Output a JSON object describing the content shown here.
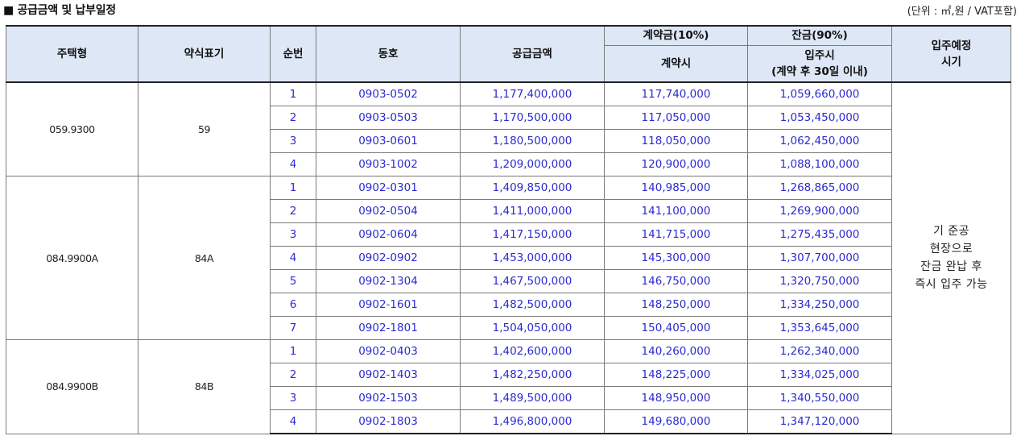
{
  "title": "■ 공급금액 및 납부일정",
  "unit_note": "(단위 : ㎡,원 / VAT포함)",
  "headers": {
    "type": "주택형",
    "abbr": "약식표기",
    "order": "순번",
    "unit_no": "동호",
    "price": "공급금액",
    "deposit": "계약금(10%)",
    "deposit_sub": "계약시",
    "balance": "잔금(90%)",
    "balance_sub1": "입주시",
    "balance_sub2": "(계약 후 30일 이내)",
    "move_in": "입주예정",
    "move_in2": "시기"
  },
  "move_in_note": [
    "기 준공",
    "현장으로",
    "잔금 완납 후",
    "즉시 입주 가능"
  ],
  "groups": [
    {
      "type": "059.9300",
      "abbr": "59",
      "rows": [
        {
          "no": "1",
          "unit": "0903-0502",
          "price": "1,177,400,000",
          "deposit": "117,740,000",
          "balance": "1,059,660,000"
        },
        {
          "no": "2",
          "unit": "0903-0503",
          "price": "1,170,500,000",
          "deposit": "117,050,000",
          "balance": "1,053,450,000"
        },
        {
          "no": "3",
          "unit": "0903-0601",
          "price": "1,180,500,000",
          "deposit": "118,050,000",
          "balance": "1,062,450,000"
        },
        {
          "no": "4",
          "unit": "0903-1002",
          "price": "1,209,000,000",
          "deposit": "120,900,000",
          "balance": "1,088,100,000"
        }
      ]
    },
    {
      "type": "084.9900A",
      "abbr": "84A",
      "rows": [
        {
          "no": "1",
          "unit": "0902-0301",
          "price": "1,409,850,000",
          "deposit": "140,985,000",
          "balance": "1,268,865,000"
        },
        {
          "no": "2",
          "unit": "0902-0504",
          "price": "1,411,000,000",
          "deposit": "141,100,000",
          "balance": "1,269,900,000"
        },
        {
          "no": "3",
          "unit": "0902-0604",
          "price": "1,417,150,000",
          "deposit": "141,715,000",
          "balance": "1,275,435,000"
        },
        {
          "no": "4",
          "unit": "0902-0902",
          "price": "1,453,000,000",
          "deposit": "145,300,000",
          "balance": "1,307,700,000"
        },
        {
          "no": "5",
          "unit": "0902-1304",
          "price": "1,467,500,000",
          "deposit": "146,750,000",
          "balance": "1,320,750,000"
        },
        {
          "no": "6",
          "unit": "0902-1601",
          "price": "1,482,500,000",
          "deposit": "148,250,000",
          "balance": "1,334,250,000"
        },
        {
          "no": "7",
          "unit": "0902-1801",
          "price": "1,504,050,000",
          "deposit": "150,405,000",
          "balance": "1,353,645,000"
        }
      ]
    },
    {
      "type": "084.9900B",
      "abbr": "84B",
      "rows": [
        {
          "no": "1",
          "unit": "0902-0403",
          "price": "1,402,600,000",
          "deposit": "140,260,000",
          "balance": "1,262,340,000"
        },
        {
          "no": "2",
          "unit": "0902-1403",
          "price": "1,482,250,000",
          "deposit": "148,225,000",
          "balance": "1,334,025,000"
        },
        {
          "no": "3",
          "unit": "0902-1503",
          "price": "1,489,500,000",
          "deposit": "148,950,000",
          "balance": "1,340,550,000"
        },
        {
          "no": "4",
          "unit": "0902-1803",
          "price": "1,496,800,000",
          "deposit": "149,680,000",
          "balance": "1,347,120,000"
        }
      ]
    }
  ]
}
